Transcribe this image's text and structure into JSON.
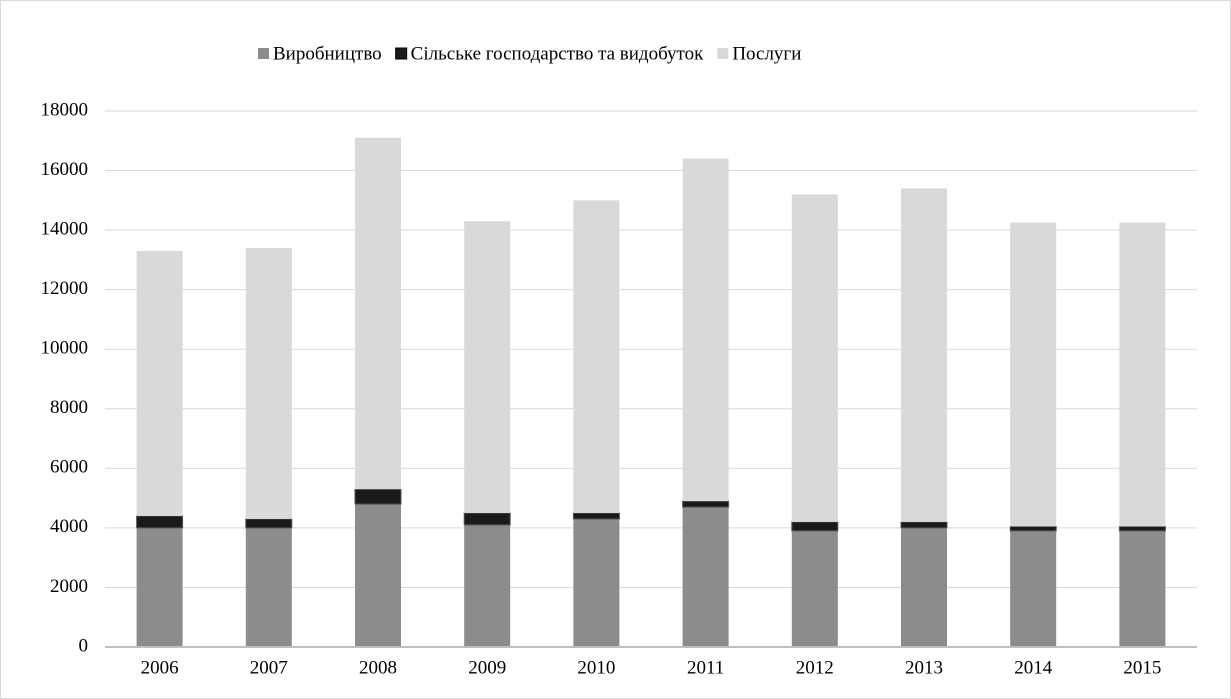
{
  "chart_data": {
    "type": "stacked_bar",
    "categories": [
      "2006",
      "2007",
      "2008",
      "2009",
      "2010",
      "2011",
      "2012",
      "2013",
      "2014",
      "2015"
    ],
    "series": [
      {
        "name": "Виробництво",
        "color": "#8c8c8c",
        "values": [
          4000,
          4000,
          4800,
          4100,
          4300,
          4700,
          3900,
          4000,
          3900,
          3900
        ]
      },
      {
        "name": "Сільське господарство та видобуток",
        "color": "#1a1a1a",
        "values": [
          400,
          300,
          500,
          400,
          200,
          200,
          300,
          200,
          150,
          150
        ]
      },
      {
        "name": "Послуги",
        "color": "#d9d9d9",
        "values": [
          8900,
          9100,
          11800,
          9800,
          10500,
          11500,
          11000,
          11200,
          10200,
          10200
        ]
      }
    ],
    "ylim": [
      0,
      18000
    ],
    "yticks": [
      0,
      2000,
      4000,
      6000,
      8000,
      10000,
      12000,
      14000,
      16000,
      18000
    ],
    "grid": true,
    "legend": "top"
  }
}
